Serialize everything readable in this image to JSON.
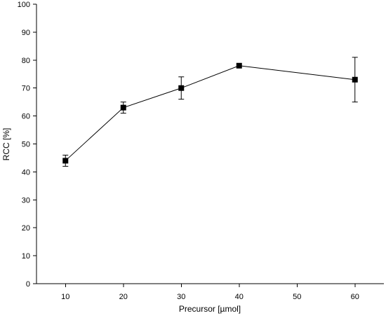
{
  "chart_data": {
    "type": "scatter",
    "title": "",
    "xlabel": "Precursor [µmol]",
    "ylabel": "RCC [%]",
    "xlim": [
      5,
      65
    ],
    "ylim": [
      0,
      100
    ],
    "xticks": [
      10,
      20,
      30,
      40,
      50,
      60
    ],
    "yticks": [
      0,
      10,
      20,
      30,
      40,
      50,
      60,
      70,
      80,
      90,
      100
    ],
    "grid": false,
    "connected": true,
    "marker": "square",
    "color": "#000000",
    "series": [
      {
        "x": [
          10,
          20,
          30,
          40,
          60
        ],
        "y": [
          44,
          63,
          70,
          78,
          73
        ],
        "yerr": [
          2,
          2,
          4,
          0,
          8
        ]
      }
    ]
  }
}
